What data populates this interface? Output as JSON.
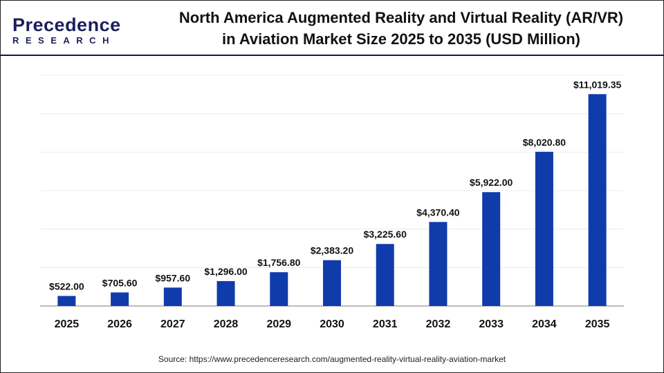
{
  "logo": {
    "line1": "Precedence",
    "line2": "RESEARCH"
  },
  "chart_data": {
    "type": "bar",
    "title": "North America Augmented Reality and Virtual Reality (AR/VR) in Aviation Market Size 2025 to 2035 (USD Million)",
    "categories": [
      "2025",
      "2026",
      "2027",
      "2028",
      "2029",
      "2030",
      "2031",
      "2032",
      "2033",
      "2034",
      "2035"
    ],
    "values": [
      522.0,
      705.6,
      957.6,
      1296.0,
      1756.8,
      2383.2,
      3225.6,
      4370.4,
      5922.0,
      8020.8,
      11019.35
    ],
    "data_labels": [
      "$522.00",
      "$705.60",
      "$957.60",
      "$1,296.00",
      "$1,756.80",
      "$2,383.20",
      "$3,225.60",
      "$4,370.40",
      "$5,922.00",
      "$8,020.80",
      "$11,019.35"
    ],
    "xlabel": "",
    "ylabel": "",
    "ylim": [
      0,
      12000
    ],
    "grid": true,
    "bar_color": "#0f3bab"
  },
  "source": "Source: https://www.precedenceresearch.com/augmented-reality-virtual-reality-aviation-market"
}
